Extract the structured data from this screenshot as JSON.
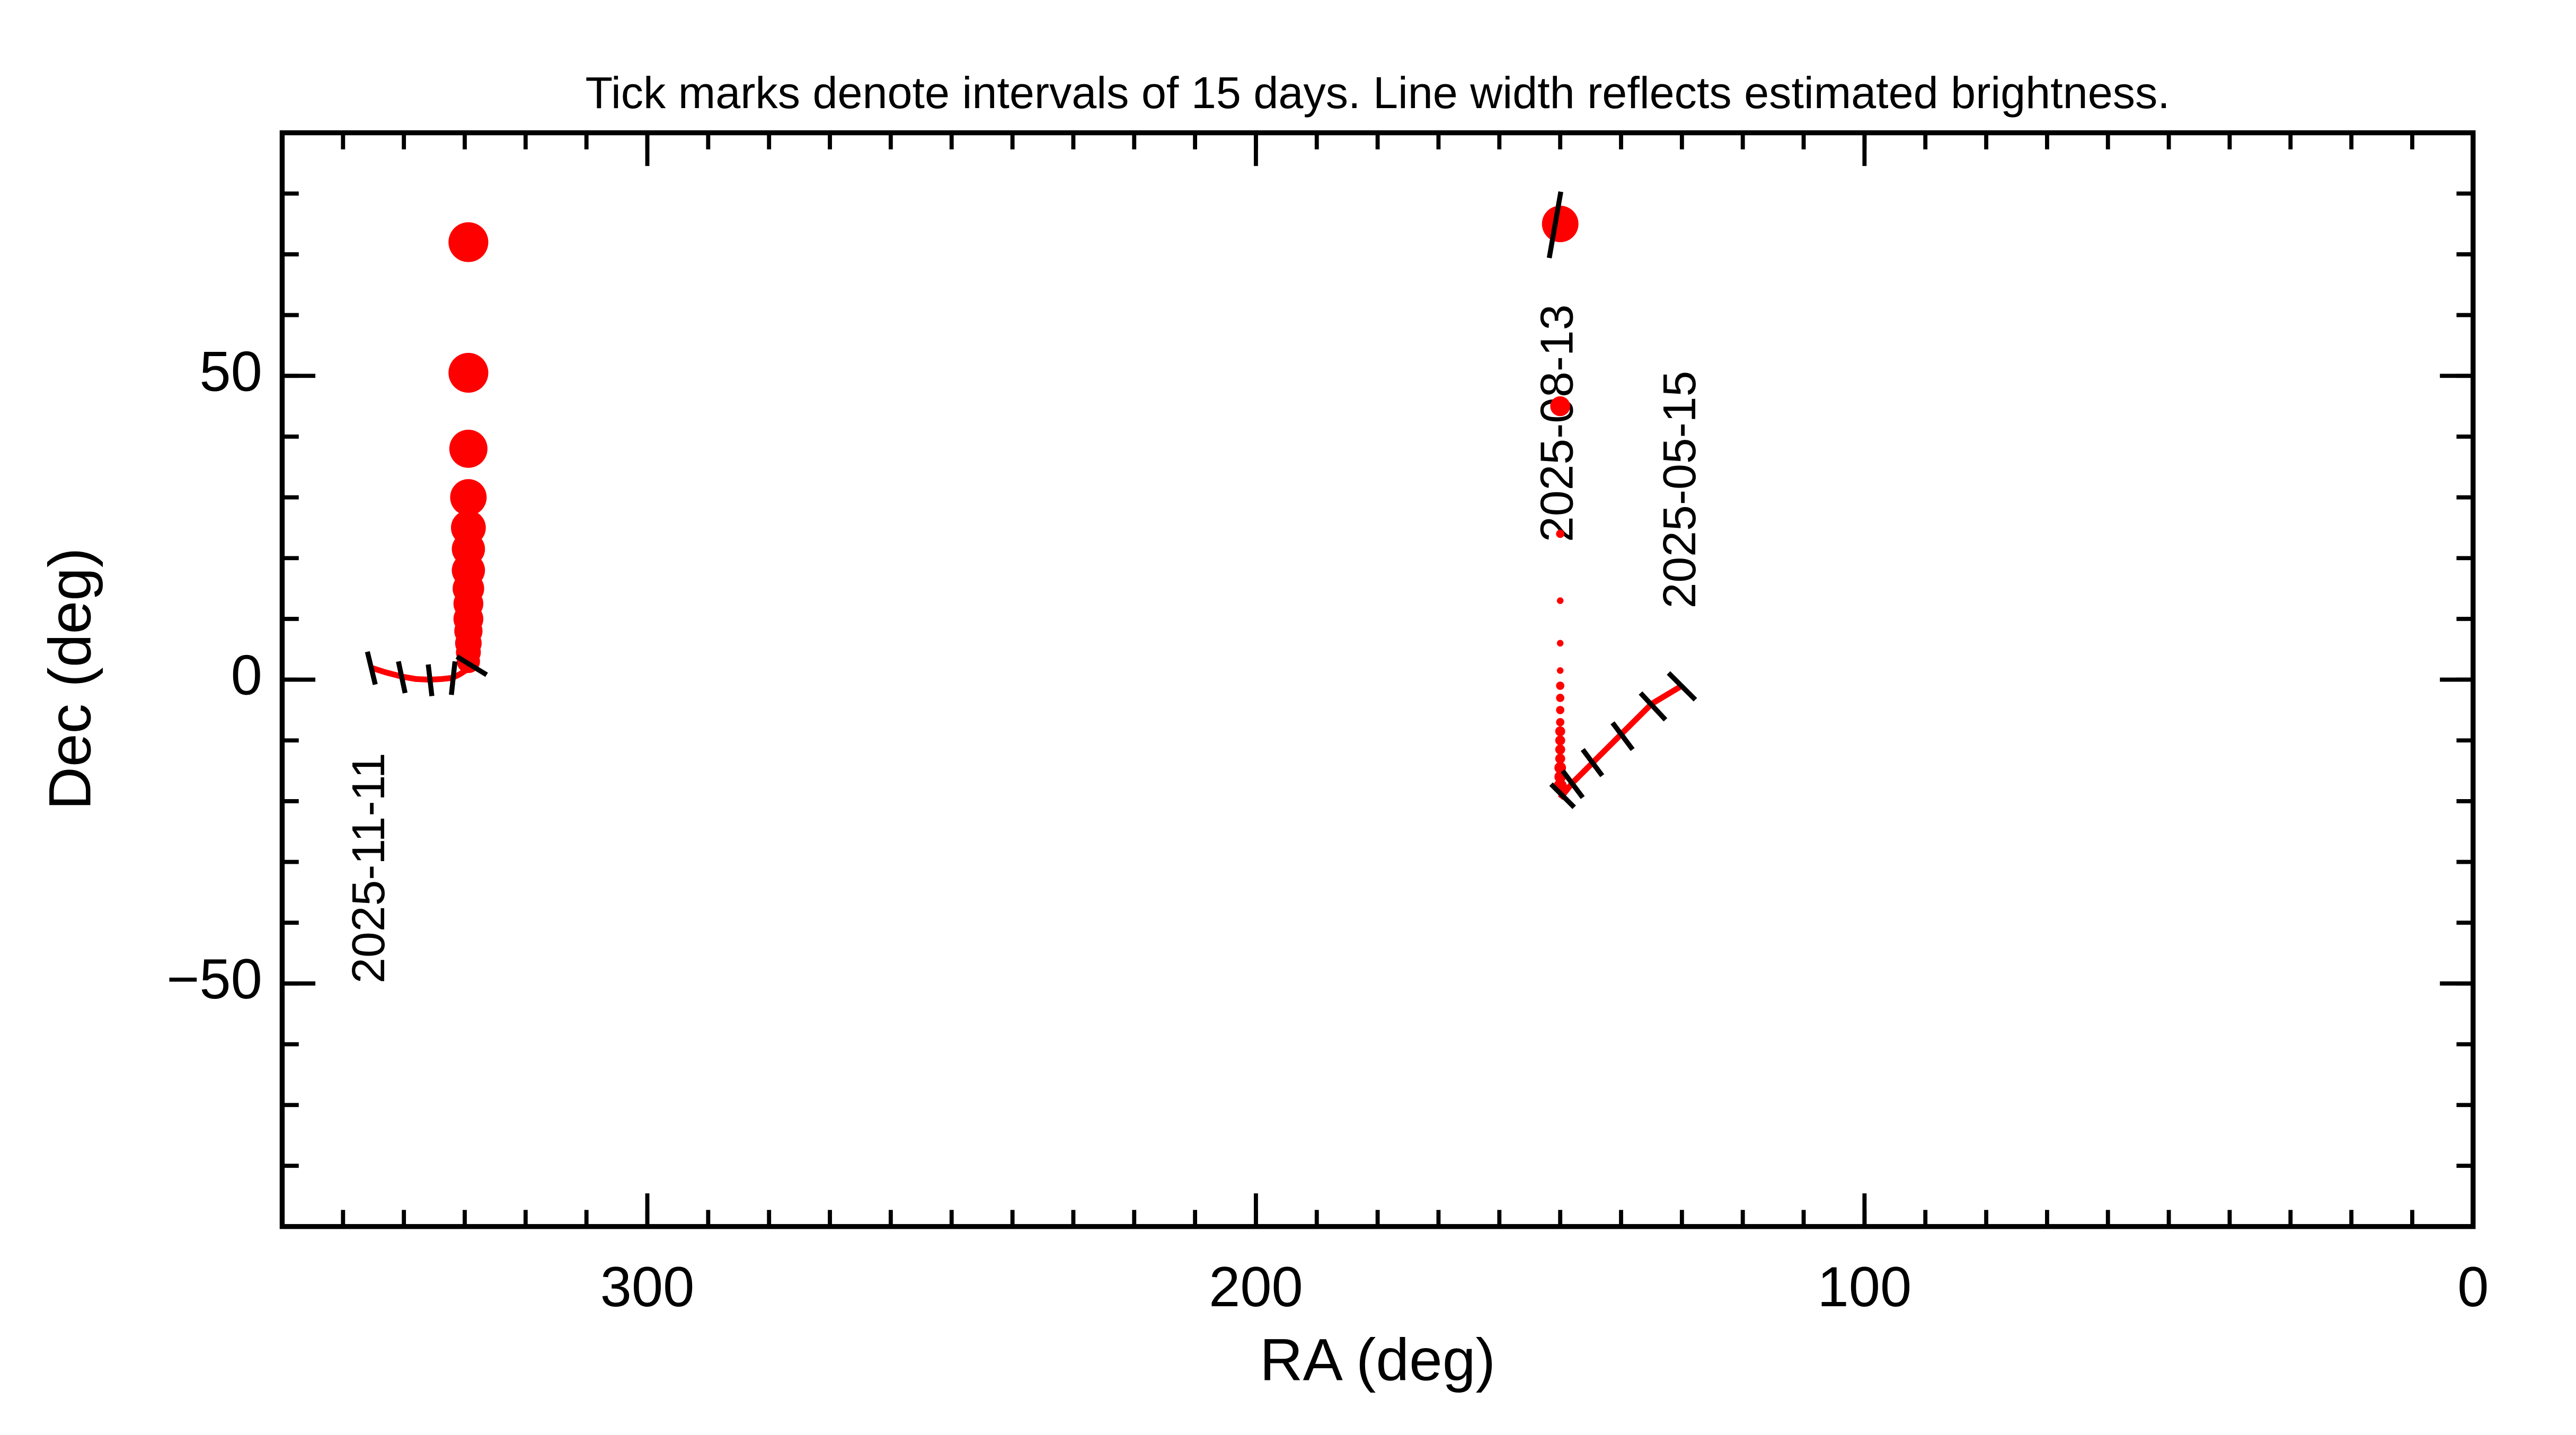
{
  "chart_data": {
    "type": "scatter",
    "title": "Tick marks denote intervals of 15 days.  Line width reflects estimated brightness.",
    "xlabel": "RA (deg)",
    "ylabel": "Dec (deg)",
    "xlim": [
      360,
      0
    ],
    "ylim": [
      -90,
      90
    ],
    "xticks": [
      300,
      200,
      100,
      0
    ],
    "yticks": [
      {
        "value": -50,
        "label": "−50"
      },
      0,
      50
    ],
    "minor_step": 10,
    "color": "#ff0000",
    "tick_color": "#000000",
    "paths": [
      {
        "ra": [
          345.5,
          343,
          340.3,
          338,
          335.7,
          333.8,
          332,
          330.8,
          329.7
        ],
        "dec": [
          2,
          1.2,
          0.5,
          0.1,
          0,
          0.1,
          0.3,
          0.9,
          1.6
        ]
      },
      {
        "ra": [
          130,
          135,
          140,
          145,
          148,
          150
        ],
        "dec": [
          -1,
          -4,
          -9,
          -14,
          -17,
          -19.5
        ]
      }
    ],
    "points": {
      "ra": [
        329.4,
        329.4,
        329.4,
        329.4,
        329.4,
        329.4,
        329.4,
        329.4,
        329.4,
        329.4,
        329.4,
        329.4,
        329.4,
        329.4,
        150,
        150,
        150,
        150,
        150,
        150,
        150,
        150,
        150,
        150,
        150,
        150,
        150,
        150,
        150,
        150,
        150
      ],
      "dec": [
        72,
        50.5,
        38,
        30,
        25,
        21.5,
        18,
        15,
        12.5,
        10,
        8,
        6,
        4.5,
        3,
        75,
        45,
        24,
        13,
        6,
        1.5,
        -1,
        -3,
        -5,
        -7,
        -8.5,
        -10,
        -11.5,
        -13,
        -14.5,
        -16,
        -17.5
      ],
      "size": [
        12,
        12,
        11.5,
        11,
        10.5,
        10,
        10,
        9.5,
        9,
        9,
        8.5,
        8,
        7.5,
        7,
        11,
        6,
        2.5,
        2,
        2,
        2,
        2.5,
        2.5,
        2.5,
        2.5,
        3,
        3,
        3,
        3,
        3.5,
        3.5,
        4
      ]
    },
    "date_ticks": [
      {
        "ra": [
          346,
          344.7
        ],
        "dec": [
          4.6,
          -0.8
        ]
      },
      {
        "ra": [
          340.9,
          339.8
        ],
        "dec": [
          3,
          -2.2
        ]
      },
      {
        "ra": [
          336,
          335.4
        ],
        "dec": [
          2.5,
          -2.7
        ]
      },
      {
        "ra": [
          331.6,
          332.2
        ],
        "dec": [
          3,
          -2.5
        ]
      },
      {
        "ra": [
          331.3,
          326.4
        ],
        "dec": [
          3.8,
          0.8
        ]
      },
      {
        "ra": [
          132.2,
          127.8
        ],
        "dec": [
          1.1,
          -3.3
        ]
      },
      {
        "ra": [
          136.8,
          132.7
        ],
        "dec": [
          -2.2,
          -6.6
        ]
      },
      {
        "ra": [
          141.4,
          138.1
        ],
        "dec": [
          -7.1,
          -11.5
        ]
      },
      {
        "ra": [
          146.3,
          143.1
        ],
        "dec": [
          -11.5,
          -15.8
        ]
      },
      {
        "ra": [
          149.6,
          146.3
        ],
        "dec": [
          -15,
          -19.4
        ]
      },
      {
        "ra": [
          151.5,
          147.7
        ],
        "dec": [
          -17.2,
          -21
        ]
      },
      {
        "ra": [
          149.9,
          151.8
        ],
        "dec": [
          80.3,
          69.4
        ]
      }
    ],
    "annotations": [
      "2025-11-11",
      "2025-08-13",
      "2025-05-15"
    ]
  }
}
